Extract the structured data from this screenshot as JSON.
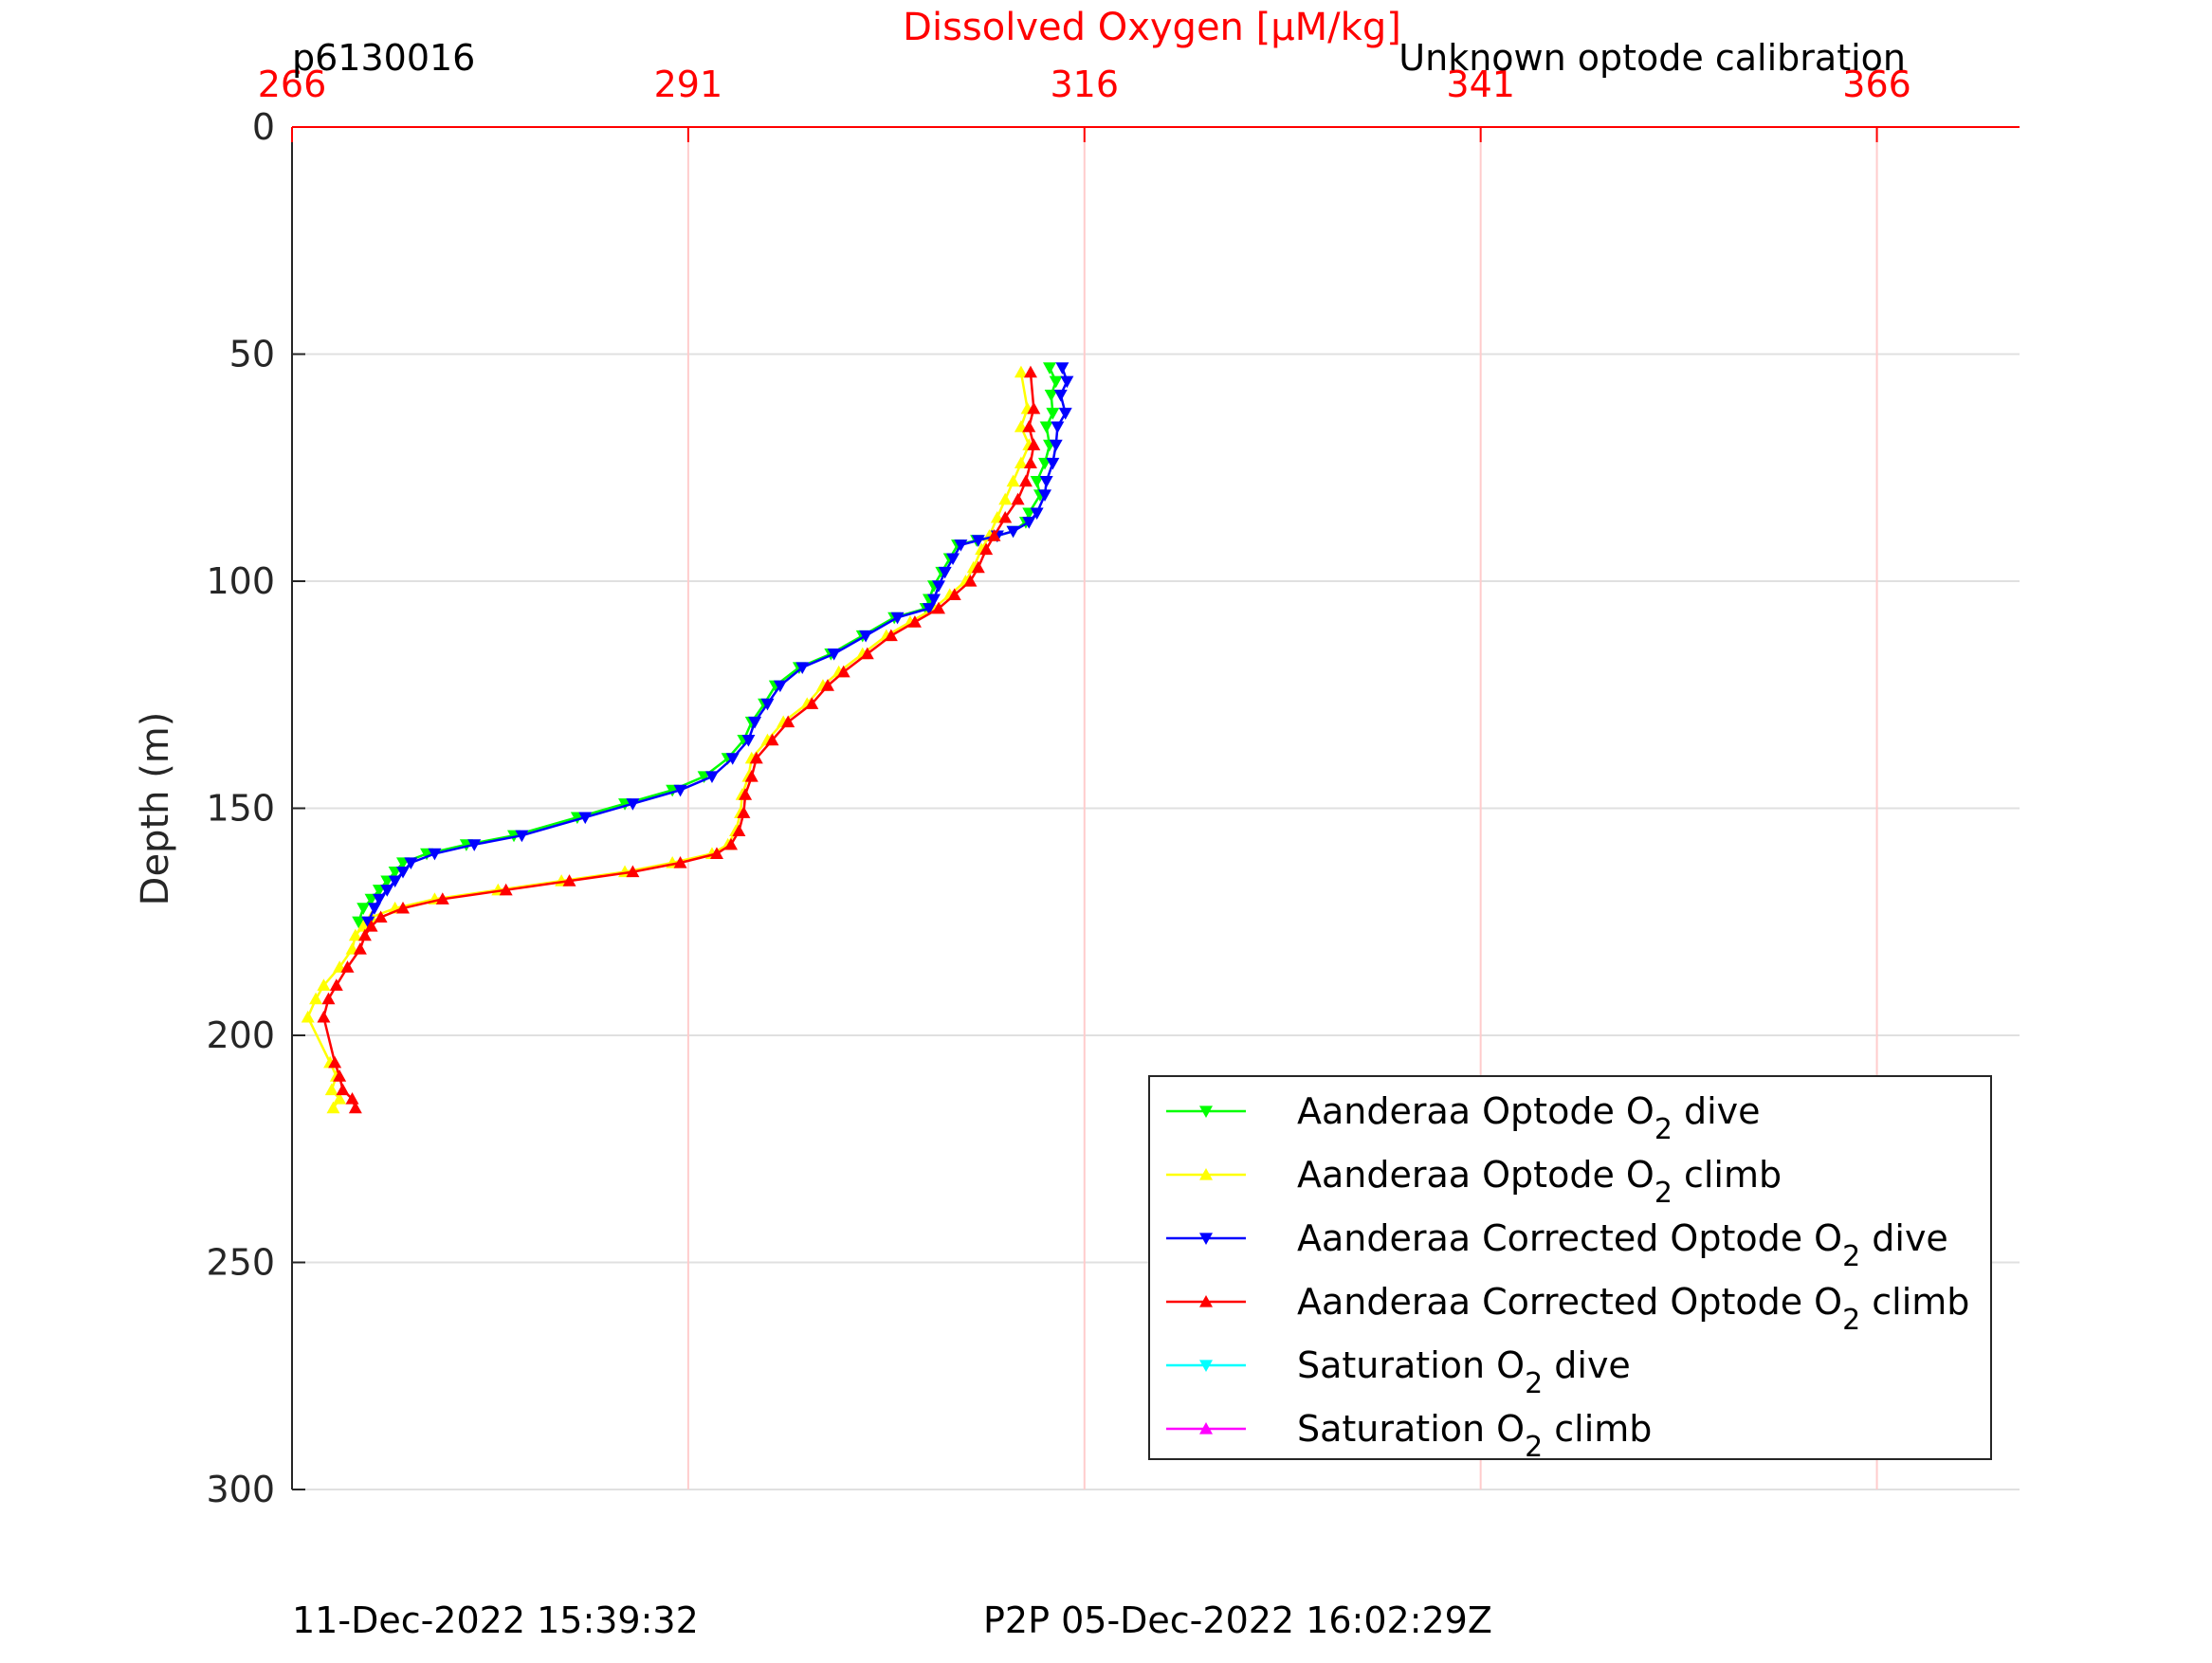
{
  "chart_data": {
    "type": "line",
    "title": "Dissolved Oxygen [µM/kg]",
    "subtitle_left": "p6130016",
    "subtitle_right": "Unknown optode calibration",
    "xlabel": "Dissolved Oxygen [µM/kg]",
    "ylabel": "Depth (m)",
    "x_axis_position": "top",
    "xlim": [
      266,
      375
    ],
    "ylim": [
      0,
      300
    ],
    "y_reversed": true,
    "xticks": [
      266,
      291,
      316,
      341,
      366
    ],
    "xtick_labels": [
      "266",
      "291",
      "316",
      "341",
      "366"
    ],
    "yticks": [
      0,
      50,
      100,
      150,
      200,
      250,
      300
    ],
    "ytick_labels": [
      "0",
      "50",
      "100",
      "150",
      "200",
      "250",
      "300"
    ],
    "grid": true,
    "legend_position": "bottom-right",
    "colors": {
      "axis_x": "#ff0000",
      "axis_y": "#262626",
      "grid_x": "#ffcccc",
      "grid_y": "#e0e0e0"
    },
    "series": [
      {
        "name": "Aanderaa Optode O2 dive",
        "legend_base": "Aanderaa Optode O",
        "legend_sub": "2",
        "legend_tail": " dive",
        "color": "#00ff00",
        "marker": "down",
        "x": [
          313.8,
          314.2,
          313.9,
          314.0,
          313.6,
          313.8,
          313.5,
          313.0,
          313.2,
          312.5,
          312.3,
          311.5,
          310.5,
          309.2,
          308.0,
          307.5,
          307.0,
          306.5,
          306.2,
          306.0,
          304.0,
          302.0,
          300.0,
          298.0,
          296.5,
          295.8,
          295.0,
          294.5,
          293.5,
          292.0,
          290.0,
          287.0,
          284.0,
          280.0,
          277.0,
          274.5,
          273.0,
          272.5,
          272.0,
          271.5,
          271.0,
          270.5,
          270.2
        ],
        "y": [
          53,
          56,
          59,
          63,
          66,
          70,
          74,
          78,
          81,
          85,
          87,
          89,
          90,
          91,
          92,
          95,
          98,
          101,
          104,
          106,
          108,
          112,
          116,
          119,
          123,
          127,
          131,
          135,
          139,
          143,
          146,
          149,
          152,
          156,
          158,
          160,
          162,
          164,
          166,
          168,
          170,
          172,
          175
        ]
      },
      {
        "name": "Aanderaa Optode O2 climb",
        "legend_base": "Aanderaa Optode O",
        "legend_sub": "2",
        "legend_tail": " climb",
        "color": "#ffff00",
        "marker": "up",
        "x": [
          268.6,
          269.0,
          268.5,
          268.8,
          268.4,
          267.0,
          267.5,
          268.0,
          269.0,
          269.8,
          270.0,
          270.5,
          271.0,
          272.5,
          275.0,
          279.0,
          283.0,
          287.0,
          290.0,
          292.5,
          293.5,
          294.0,
          294.3,
          294.4,
          294.8,
          295.0,
          296.0,
          297.0,
          298.5,
          299.5,
          300.5,
          302.0,
          303.5,
          305.0,
          306.5,
          307.5,
          308.5,
          309.0,
          309.5,
          310.0,
          310.5,
          311.0,
          311.5,
          312.0,
          312.5,
          312.0,
          312.4,
          312.0
        ],
        "y": [
          216,
          214,
          212,
          209,
          206,
          196,
          192,
          189,
          185,
          181,
          178,
          176,
          174,
          172,
          170,
          168,
          166,
          164,
          162,
          160,
          158,
          155,
          151,
          147,
          143,
          139,
          135,
          131,
          127,
          123,
          120,
          116,
          112,
          109,
          106,
          103,
          100,
          97,
          93,
          90,
          86,
          82,
          78,
          74,
          70,
          66,
          62,
          54
        ]
      },
      {
        "name": "Aanderaa Corrected Optode O2 dive",
        "legend_base": "Aanderaa Corrected Optode O",
        "legend_sub": "2",
        "legend_tail": " dive",
        "color": "#0000ff",
        "marker": "down",
        "x": [
          314.6,
          314.9,
          314.5,
          314.8,
          314.3,
          314.2,
          314.0,
          313.6,
          313.5,
          313.0,
          312.5,
          311.5,
          310.5,
          309.3,
          308.2,
          307.7,
          307.2,
          306.8,
          306.5,
          306.2,
          304.2,
          302.2,
          300.2,
          298.2,
          296.8,
          296.0,
          295.2,
          294.8,
          293.8,
          292.5,
          290.5,
          287.5,
          284.5,
          280.5,
          277.5,
          275.0,
          273.5,
          273.0,
          272.5,
          272.0,
          271.5,
          271.2,
          270.8
        ],
        "y": [
          53,
          56,
          59,
          63,
          66,
          70,
          74,
          78,
          81,
          85,
          87,
          89,
          90,
          91,
          92,
          95,
          98,
          101,
          104,
          106,
          108,
          112,
          116,
          119,
          123,
          127,
          131,
          135,
          139,
          143,
          146,
          149,
          152,
          156,
          158,
          160,
          162,
          164,
          166,
          168,
          170,
          172,
          175
        ]
      },
      {
        "name": "Aanderaa Corrected Optode O2 climb",
        "legend_base": "Aanderaa Corrected Optode O",
        "legend_sub": "2",
        "legend_tail": " climb",
        "color": "#ff0000",
        "marker": "up",
        "x": [
          270.0,
          269.8,
          269.2,
          269.0,
          268.7,
          268.0,
          268.3,
          268.8,
          269.5,
          270.3,
          270.6,
          271.0,
          271.6,
          273.0,
          275.5,
          279.5,
          283.5,
          287.5,
          290.5,
          292.8,
          293.7,
          294.2,
          294.5,
          294.6,
          295.0,
          295.3,
          296.3,
          297.3,
          298.8,
          299.8,
          300.8,
          302.3,
          303.8,
          305.3,
          306.8,
          307.8,
          308.8,
          309.3,
          309.8,
          310.3,
          311.0,
          311.8,
          312.3,
          312.6,
          312.8,
          312.5,
          312.8,
          312.6
        ],
        "y": [
          216,
          214,
          212,
          209,
          206,
          196,
          192,
          189,
          185,
          181,
          178,
          176,
          174,
          172,
          170,
          168,
          166,
          164,
          162,
          160,
          158,
          155,
          151,
          147,
          143,
          139,
          135,
          131,
          127,
          123,
          120,
          116,
          112,
          109,
          106,
          103,
          100,
          97,
          93,
          90,
          86,
          82,
          78,
          74,
          70,
          66,
          62,
          54
        ]
      },
      {
        "name": "Saturation O2 dive",
        "legend_base": "Saturation O",
        "legend_sub": "2",
        "legend_tail": " dive",
        "color": "#00ffff",
        "marker": "down",
        "x": [],
        "y": []
      },
      {
        "name": "Saturation O2 climb",
        "legend_base": "Saturation O",
        "legend_sub": "2",
        "legend_tail": " climb",
        "color": "#ff00ff",
        "marker": "up",
        "x": [],
        "y": []
      }
    ],
    "footer_left": "11-Dec-2022 15:39:32",
    "footer_right": "P2P 05-Dec-2022 16:02:29Z"
  }
}
